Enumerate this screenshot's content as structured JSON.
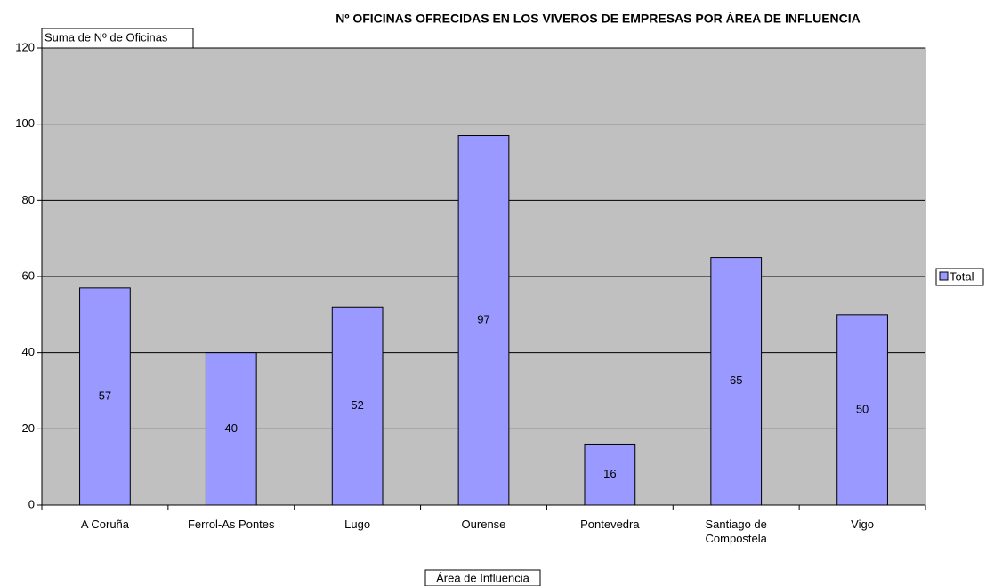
{
  "chart_data": {
    "type": "bar",
    "title": "Nº OFICINAS OFRECIDAS EN LOS VIVEROS DE EMPRESAS POR ÁREA DE INFLUENCIA",
    "y_label": "Suma de Nº de Oficinas",
    "x_label": "Área de Influencia",
    "categories": [
      "A Coruña",
      "Ferrol-As Pontes",
      "Lugo",
      "Ourense",
      "Pontevedra",
      "Santiago de Compostela",
      "Vigo"
    ],
    "series": [
      {
        "name": "Total",
        "color": "#9999ff",
        "values": [
          57,
          40,
          52,
          97,
          16,
          65,
          50
        ]
      }
    ],
    "ylim": [
      0,
      120
    ],
    "yticks": [
      0,
      20,
      40,
      60,
      80,
      100,
      120
    ],
    "grid": true,
    "legend": "right"
  }
}
